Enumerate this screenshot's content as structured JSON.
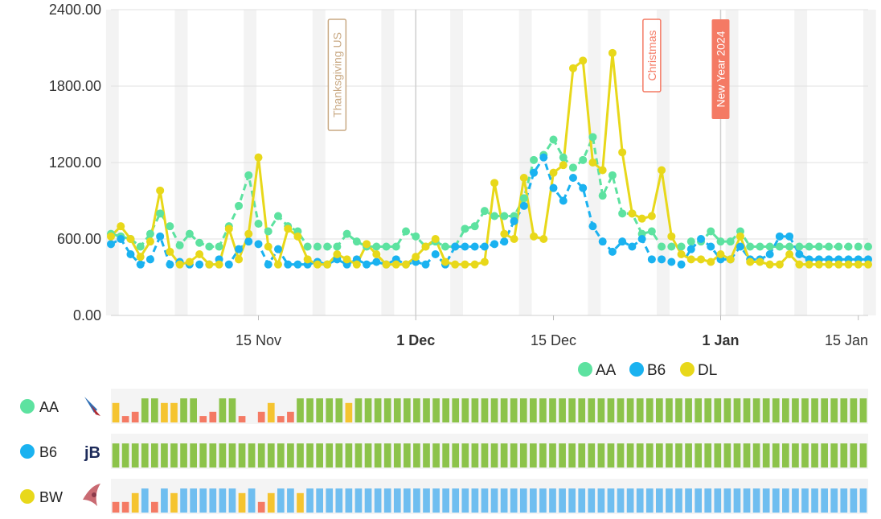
{
  "chart_data": {
    "type": "line",
    "y_ticks": [
      "2400.00",
      "1800.00",
      "1200.00",
      "600.00",
      "0.00"
    ],
    "ylim": [
      0,
      2400
    ],
    "x_ticks": [
      {
        "label": "15 Nov",
        "day": 15,
        "major": false
      },
      {
        "label": "1 Dec",
        "day": 31,
        "major": true
      },
      {
        "label": "15 Dec",
        "day": 45,
        "major": false
      },
      {
        "label": "1 Jan",
        "day": 62,
        "major": true
      },
      {
        "label": "15 Jan",
        "day": 76,
        "major": false
      }
    ],
    "annotations": [
      {
        "label": "Thanksgiving US",
        "day": 23,
        "color": "#c8a882",
        "style": "outline"
      },
      {
        "label": "Christmas",
        "day": 55,
        "color": "#f47a64",
        "style": "outline"
      },
      {
        "label": "New Year 2024",
        "day": 62,
        "color": "#f47a64",
        "style": "filled"
      }
    ],
    "series": [
      {
        "name": "AA",
        "color": "#5de2a0",
        "values": [
          640,
          620,
          600,
          540,
          640,
          800,
          700,
          550,
          640,
          570,
          540,
          540,
          700,
          860,
          1100,
          720,
          660,
          780,
          700,
          660,
          540,
          540,
          540,
          540,
          640,
          580,
          540,
          540,
          540,
          540,
          660,
          620,
          540,
          580,
          540,
          540,
          680,
          700,
          820,
          780,
          780,
          780,
          920,
          1220,
          1260,
          1380,
          1240,
          1160,
          1220,
          1400,
          940,
          1100,
          800,
          800,
          640,
          660,
          540,
          540,
          540,
          580,
          580,
          660,
          580,
          580,
          660,
          540,
          540,
          540,
          540,
          540,
          540,
          540,
          540,
          540,
          540,
          540,
          540,
          540
        ]
      },
      {
        "name": "B6",
        "color": "#1ab2f0",
        "values": [
          560,
          600,
          480,
          400,
          440,
          620,
          400,
          420,
          400,
          400,
          400,
          440,
          400,
          520,
          580,
          560,
          400,
          520,
          400,
          400,
          400,
          420,
          400,
          440,
          400,
          440,
          400,
          420,
          400,
          440,
          400,
          420,
          400,
          480,
          400,
          540,
          540,
          540,
          540,
          560,
          580,
          740,
          860,
          1120,
          1240,
          1000,
          900,
          1080,
          1000,
          700,
          580,
          500,
          580,
          540,
          600,
          440,
          440,
          420,
          400,
          520,
          600,
          540,
          440,
          440,
          540,
          440,
          440,
          480,
          620,
          620,
          480,
          440,
          440,
          440,
          440,
          440,
          440,
          440
        ]
      },
      {
        "name": "DL",
        "color": "#e8d81a",
        "values": [
          620,
          700,
          600,
          460,
          580,
          980,
          500,
          400,
          420,
          480,
          400,
          400,
          680,
          440,
          640,
          1240,
          540,
          400,
          680,
          620,
          440,
          400,
          400,
          480,
          440,
          400,
          560,
          480,
          400,
          400,
          400,
          460,
          540,
          600,
          420,
          400,
          400,
          400,
          420,
          1040,
          640,
          600,
          1080,
          620,
          600,
          1120,
          1180,
          1940,
          2000,
          1200,
          1140,
          2060,
          1280,
          800,
          760,
          780,
          1140,
          620,
          480,
          440,
          440,
          420,
          480,
          440,
          620,
          420,
          420,
          400,
          400,
          480,
          400,
          400,
          400,
          400,
          400,
          400,
          400,
          400
        ]
      }
    ],
    "legend": {
      "items": [
        "AA",
        "B6",
        "DL"
      ],
      "placement": "bottom-right"
    }
  },
  "availability_rows": [
    {
      "label": "AA",
      "dot_color": "#5de2a0",
      "logo_icon": "american-airlines-logo-icon",
      "levels": [
        2,
        0,
        1,
        3,
        3,
        2,
        2,
        3,
        3,
        0,
        1,
        3,
        3,
        0,
        4,
        1,
        2,
        0,
        1,
        3,
        3,
        3,
        3,
        3,
        2,
        3,
        3,
        3,
        3,
        3,
        3,
        3,
        3,
        3,
        3,
        3,
        3,
        3,
        3,
        3,
        3,
        3,
        3,
        3,
        3,
        3,
        3,
        3,
        3,
        3,
        3,
        3,
        3,
        3,
        3,
        3,
        3,
        3,
        3,
        3,
        3,
        3,
        3,
        3,
        3,
        3,
        3,
        3,
        3,
        3,
        3,
        3,
        3,
        3,
        3,
        3,
        3,
        3
      ]
    },
    {
      "label": "B6",
      "dot_color": "#1ab2f0",
      "logo_icon": "jetblue-logo-icon",
      "levels": [
        3,
        3,
        3,
        3,
        3,
        3,
        3,
        3,
        3,
        3,
        3,
        3,
        3,
        3,
        3,
        3,
        3,
        3,
        3,
        3,
        3,
        3,
        3,
        3,
        3,
        3,
        3,
        3,
        3,
        3,
        3,
        3,
        3,
        3,
        3,
        3,
        3,
        3,
        3,
        3,
        3,
        3,
        3,
        3,
        3,
        3,
        3,
        3,
        3,
        3,
        3,
        3,
        3,
        3,
        3,
        3,
        3,
        3,
        3,
        3,
        3,
        3,
        3,
        3,
        3,
        3,
        3,
        3,
        3,
        3,
        3,
        3,
        3,
        3,
        3,
        3,
        3,
        3
      ]
    },
    {
      "label": "BW",
      "dot_color": "#e8d81a",
      "logo_icon": "bird-logo-icon",
      "levels": [
        1,
        1,
        2,
        3,
        1,
        3,
        2,
        3,
        3,
        3,
        3,
        3,
        3,
        2,
        3,
        1,
        2,
        3,
        3,
        2,
        3,
        3,
        3,
        3,
        3,
        3,
        3,
        3,
        3,
        3,
        3,
        3,
        3,
        3,
        3,
        3,
        3,
        3,
        3,
        3,
        3,
        3,
        3,
        3,
        3,
        3,
        3,
        3,
        3,
        3,
        3,
        3,
        3,
        3,
        3,
        3,
        3,
        3,
        3,
        3,
        3,
        3,
        3,
        3,
        3,
        3,
        3,
        3,
        3,
        3,
        3,
        3,
        3,
        3,
        3,
        3,
        3,
        3
      ]
    }
  ],
  "level_colors": [
    "#f47a64",
    "#f47a64",
    "#f5c430",
    "#8cc34a"
  ],
  "bw_bar_color": "#6fbef0"
}
